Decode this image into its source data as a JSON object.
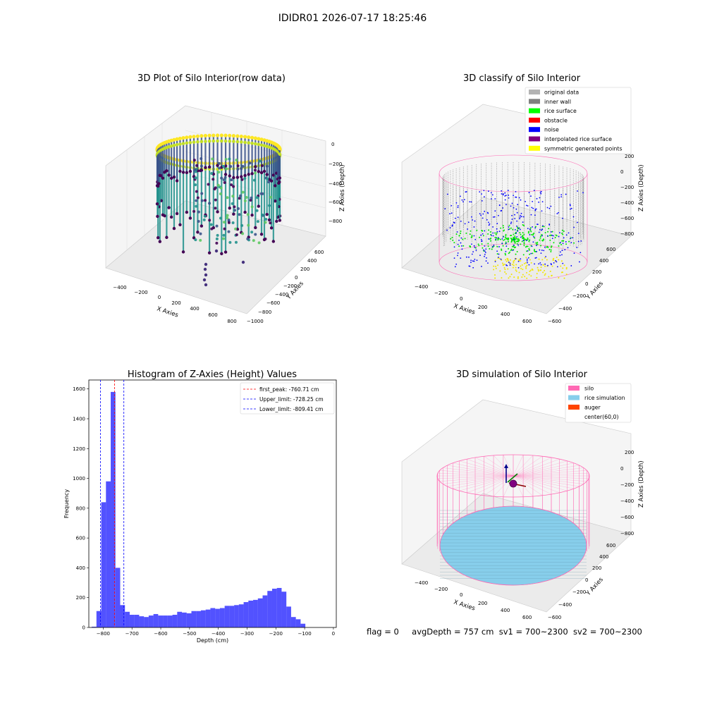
{
  "suptitle": "IDIDR01 2026-07-17 18:25:46",
  "footer": {
    "flag": "flag = 0",
    "avg_depth": "avgDepth = 757 cm",
    "sv1": "sv1 = 700~2300",
    "sv2": "sv2 = 700~2300"
  },
  "panels": {
    "raw": {
      "title": "3D Plot of Silo Interior(row data)",
      "xlabel": "X Axies",
      "ylabel": "Y Axies",
      "zlabel": "Z Axies (Depth)",
      "xticks": [
        "−400",
        "−200",
        "0",
        "200",
        "400",
        "600",
        "800"
      ],
      "yticks": [
        "−1000",
        "−800",
        "−600",
        "−400",
        "−200",
        "0",
        "200",
        "400",
        "600"
      ],
      "zticks": [
        "0",
        "−200",
        "−400",
        "−600",
        "−800"
      ]
    },
    "classify": {
      "title": "3D classify of Silo Interior",
      "xlabel": "X Axies",
      "ylabel": "Y Axies",
      "zlabel": "Z Axies (Depth)",
      "xticks": [
        "−400",
        "−200",
        "0",
        "200",
        "400",
        "600"
      ],
      "yticks": [
        "−600",
        "−400",
        "−200",
        "0",
        "200",
        "400",
        "600"
      ],
      "zticks": [
        "200",
        "0",
        "−200",
        "−400",
        "−600",
        "−800"
      ],
      "legend": [
        {
          "label": "original data",
          "color": "#b3b3b3"
        },
        {
          "label": "inner wall",
          "color": "#808080"
        },
        {
          "label": "rice surface",
          "color": "#00ff00"
        },
        {
          "label": "obstacle",
          "color": "#ff0000"
        },
        {
          "label": "noise",
          "color": "#0000ff"
        },
        {
          "label": "interpolated rice surface",
          "color": "#800080"
        },
        {
          "label": "symmetric generated points",
          "color": "#ffff00"
        }
      ]
    },
    "simulation": {
      "title": "3D simulation of Silo Interior",
      "xlabel": "X Axies",
      "ylabel": "Y Axies",
      "zlabel": "Z Axies (Depth)",
      "xticks": [
        "−400",
        "−200",
        "0",
        "200",
        "400",
        "600"
      ],
      "yticks": [
        "−600",
        "−400",
        "−200",
        "0",
        "200",
        "400",
        "600"
      ],
      "zticks": [
        "200",
        "0",
        "−200",
        "−400",
        "−600",
        "−800"
      ],
      "legend": [
        {
          "label": "silo",
          "color": "#ff69b4"
        },
        {
          "label": "rice simulation",
          "color": "#87ceeb"
        },
        {
          "label": "auger",
          "color": "#ff4500"
        },
        {
          "label": "center(60,0)",
          "color": ""
        }
      ]
    }
  },
  "chart_data": {
    "type": "bar",
    "title": "Histogram of Z-Axies (Height) Values",
    "xlabel": "Depth (cm)",
    "ylabel": "Frequency",
    "xlim": [
      -850,
      10
    ],
    "ylim": [
      0,
      1660
    ],
    "xticks": [
      -800,
      -700,
      -600,
      -500,
      -400,
      -300,
      -200,
      -100,
      0
    ],
    "yticks": [
      0,
      200,
      400,
      600,
      800,
      1000,
      1200,
      1400,
      1600
    ],
    "bin_start": -840,
    "bin_width": 16.5,
    "values": [
      5,
      110,
      840,
      980,
      1580,
      400,
      150,
      105,
      85,
      85,
      75,
      70,
      80,
      90,
      80,
      80,
      80,
      85,
      105,
      100,
      95,
      110,
      110,
      115,
      120,
      130,
      125,
      130,
      145,
      145,
      150,
      155,
      170,
      180,
      185,
      195,
      215,
      245,
      260,
      265,
      240,
      140,
      70,
      55,
      25
    ],
    "bar_color": "#0000ff",
    "legend": [
      {
        "label": "first_peak: -760.71 cm",
        "color": "#ff0000",
        "x": -760.71
      },
      {
        "label": "Upper_limit: -728.25 cm",
        "color": "#0000ff",
        "x": -728.25
      },
      {
        "label": "Lower_limit: -809.41 cm",
        "color": "#0000ff",
        "x": -809.41
      }
    ]
  }
}
